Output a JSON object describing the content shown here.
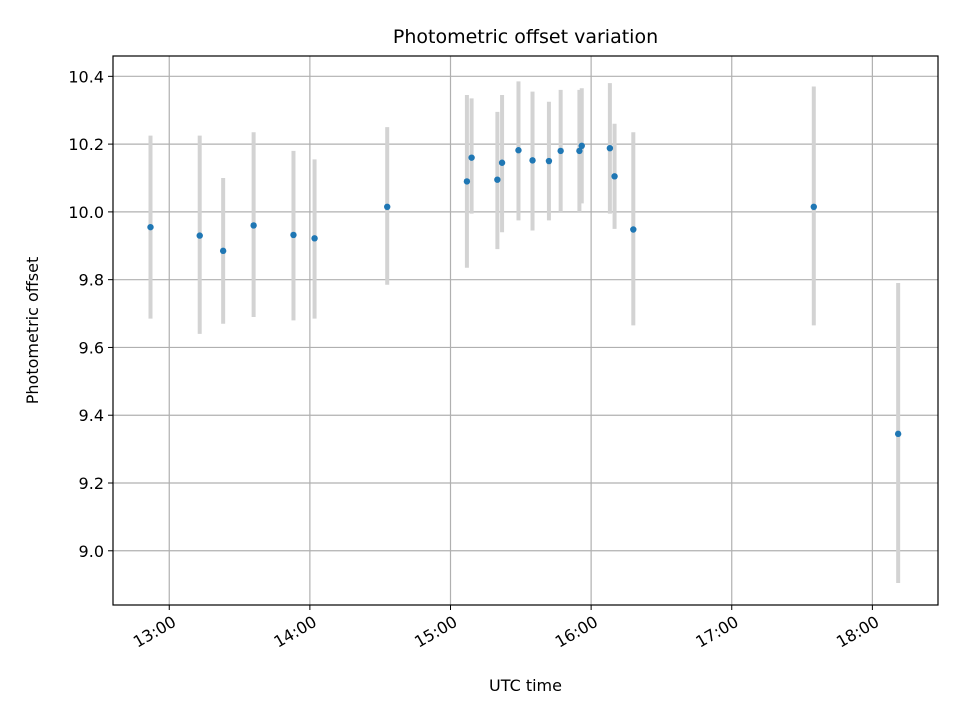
{
  "chart_data": {
    "type": "scatter",
    "title": "Photometric offset variation",
    "xlabel": "UTC time",
    "ylabel": "Photometric offset",
    "xlim": [
      "12:36",
      "18:28"
    ],
    "ylim": [
      8.84,
      10.46
    ],
    "x_ticks": [
      "13:00",
      "14:00",
      "15:00",
      "16:00",
      "17:00",
      "18:00"
    ],
    "y_ticks": [
      9.0,
      9.2,
      9.4,
      9.6,
      9.8,
      10.0,
      10.2,
      10.4
    ],
    "grid": true,
    "marker_color": "#1f77b4",
    "errorbar_color": "#d3d3d3",
    "points": [
      {
        "x": "12:52",
        "y": 9.955,
        "lo": 9.685,
        "hi": 10.225
      },
      {
        "x": "13:13",
        "y": 9.93,
        "lo": 9.64,
        "hi": 10.225
      },
      {
        "x": "13:23",
        "y": 9.885,
        "lo": 9.67,
        "hi": 10.1
      },
      {
        "x": "13:36",
        "y": 9.96,
        "lo": 9.69,
        "hi": 10.235
      },
      {
        "x": "13:53",
        "y": 9.932,
        "lo": 9.68,
        "hi": 10.18
      },
      {
        "x": "14:02",
        "y": 9.922,
        "lo": 9.685,
        "hi": 10.155
      },
      {
        "x": "14:33",
        "y": 10.015,
        "lo": 9.785,
        "hi": 10.25
      },
      {
        "x": "15:07",
        "y": 10.09,
        "lo": 9.835,
        "hi": 10.345
      },
      {
        "x": "15:09",
        "y": 10.16,
        "lo": 9.995,
        "hi": 10.335
      },
      {
        "x": "15:20",
        "y": 10.095,
        "lo": 9.89,
        "hi": 10.295
      },
      {
        "x": "15:22",
        "y": 10.145,
        "lo": 9.94,
        "hi": 10.345
      },
      {
        "x": "15:29",
        "y": 10.182,
        "lo": 9.975,
        "hi": 10.385
      },
      {
        "x": "15:35",
        "y": 10.152,
        "lo": 9.945,
        "hi": 10.355
      },
      {
        "x": "15:42",
        "y": 10.15,
        "lo": 9.975,
        "hi": 10.325
      },
      {
        "x": "15:47",
        "y": 10.18,
        "lo": 10.0,
        "hi": 10.36
      },
      {
        "x": "15:55",
        "y": 10.18,
        "lo": 10.0,
        "hi": 10.36
      },
      {
        "x": "15:56",
        "y": 10.195,
        "lo": 10.025,
        "hi": 10.365
      },
      {
        "x": "16:08",
        "y": 10.188,
        "lo": 9.995,
        "hi": 10.38
      },
      {
        "x": "16:10",
        "y": 10.105,
        "lo": 9.95,
        "hi": 10.26
      },
      {
        "x": "16:18",
        "y": 9.948,
        "lo": 9.665,
        "hi": 10.235
      },
      {
        "x": "17:35",
        "y": 10.015,
        "lo": 9.665,
        "hi": 10.37
      },
      {
        "x": "18:11",
        "y": 9.345,
        "lo": 8.905,
        "hi": 9.79
      }
    ]
  }
}
